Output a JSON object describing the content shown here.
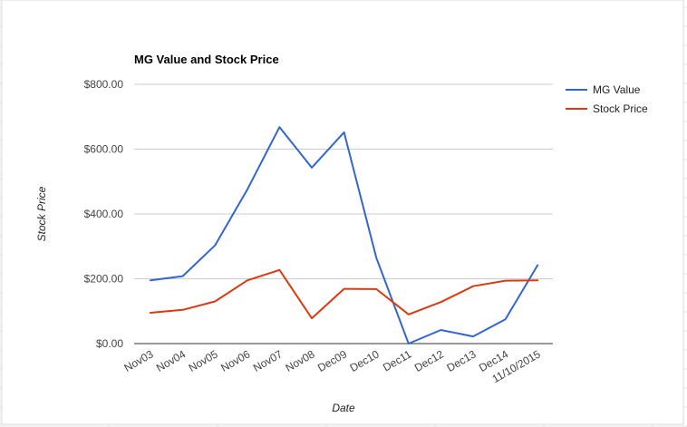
{
  "chart_data": {
    "type": "line",
    "title": "MG Value and Stock Price",
    "xlabel": "Date",
    "ylabel": "Stock Price",
    "categories": [
      "Nov03",
      "Nov04",
      "Nov05",
      "Nov06",
      "Nov07",
      "Nov08",
      "Dec09",
      "Dec10",
      "Dec11",
      "Dec12",
      "Dec13",
      "Dec14",
      "11/10/2015"
    ],
    "series": [
      {
        "name": "MG Value",
        "color": "#3366cc",
        "values": [
          195,
          208,
          303,
          475,
          668,
          543,
          652,
          265,
          0,
          42,
          22,
          75,
          242
        ]
      },
      {
        "name": "Stock Price",
        "color": "#dc3912",
        "values": [
          95,
          104,
          130,
          195,
          227,
          78,
          169,
          168,
          90,
          128,
          177,
          194,
          195
        ]
      }
    ],
    "ylim": [
      0,
      800
    ],
    "yticks": [
      {
        "value": 0,
        "label": "$0.00"
      },
      {
        "value": 200,
        "label": "$200.00"
      },
      {
        "value": 400,
        "label": "$400.00"
      },
      {
        "value": 600,
        "label": "$600.00"
      },
      {
        "value": 800,
        "label": "$800.00"
      }
    ],
    "grid": true,
    "legend": "right"
  }
}
